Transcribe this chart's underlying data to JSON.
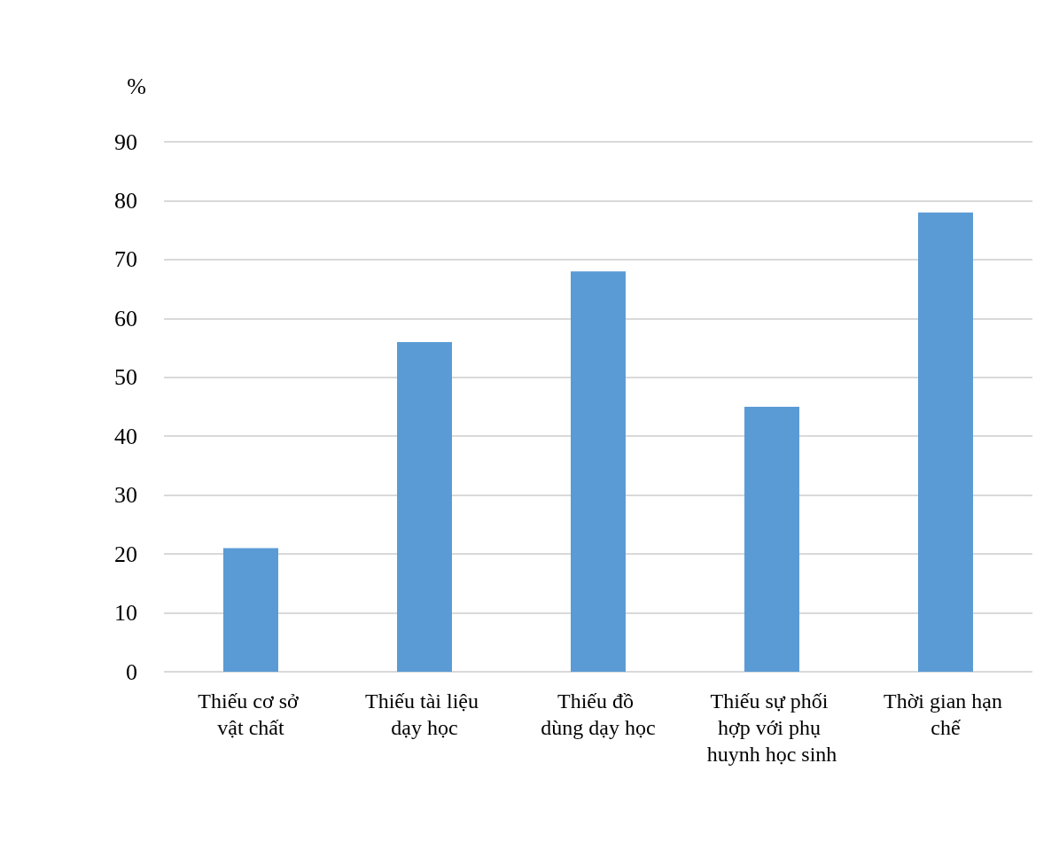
{
  "chart_data": {
    "type": "bar",
    "ylabel": "%",
    "categories": [
      "Thiếu cơ sở vật chất",
      "Thiếu tài liệu dạy học",
      "Thiếu đồ dùng dạy học",
      "Thiếu sự phối hợp với phụ huynh học sinh",
      "Thời gian hạn chế"
    ],
    "values": [
      21,
      56,
      68,
      45,
      78
    ],
    "color": "#5b9bd5",
    "ylim": [
      0,
      90
    ],
    "yticks": [
      0,
      10,
      20,
      30,
      40,
      50,
      60,
      70,
      80,
      90
    ],
    "grid": "y"
  }
}
